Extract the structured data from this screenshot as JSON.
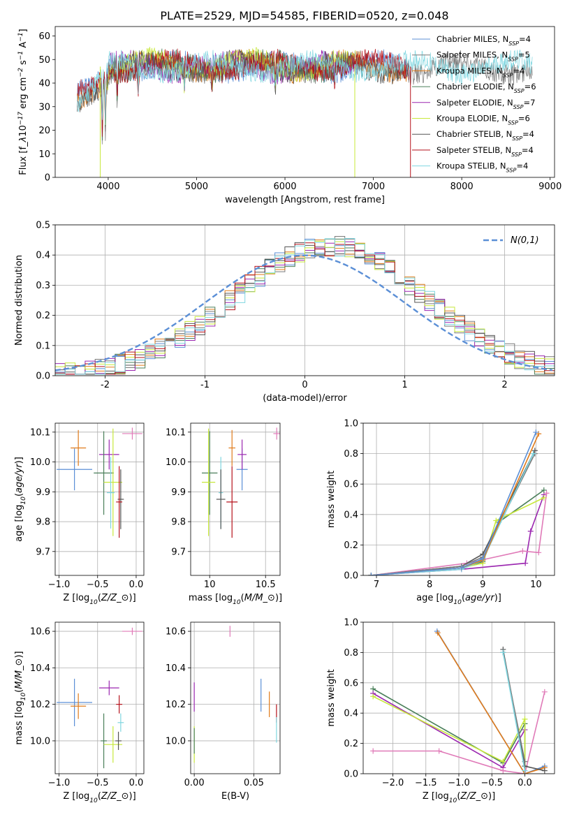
{
  "title": "PLATE=2529, MJD=54585, FIBERID=0520, z=0.048",
  "colors": {
    "Chabrier MILES": "#5b8fd6",
    "Salpeter MILES": "#7a7a7a",
    "Kroupa MILES": "#e07b1a",
    "Chabrier ELODIE": "#4a7f5a",
    "Salpeter ELODIE": "#9b27b0",
    "Kroupa ELODIE": "#c7e83a",
    "Chabrier STELIB": "#555555",
    "Salpeter STELIB": "#b5121b",
    "Kroupa STELIB": "#7fd6e0",
    "pink": "#e07ab8",
    "gauss": "#5b8fd6"
  },
  "chart_data": [
    {
      "id": "spectrum",
      "type": "line",
      "xlabel": "wavelength [Angstrom, rest frame]",
      "ylabel": "Flux [f$_\\lambda$10$^{-17}$ erg cm$^{-2}$ s$^{-1}$ A$^{-1}$]",
      "xlim": [
        3400,
        9050
      ],
      "ylim": [
        0,
        64
      ],
      "xticks": [
        4000,
        5000,
        6000,
        7000,
        8000,
        9000
      ],
      "yticks": [
        0,
        10,
        20,
        30,
        40,
        50,
        60
      ],
      "grid": false,
      "legend": "top-right",
      "series": [
        {
          "name": "Chabrier MILES, N$_{SSP}$=4",
          "color_key": "Chabrier MILES",
          "x_range": [
            3650,
            7400
          ],
          "base": 47,
          "phase": 0.0
        },
        {
          "name": "Salpeter MILES, N$_{SSP}$=5",
          "color_key": "Salpeter MILES",
          "x_range": [
            3650,
            8800
          ],
          "base": 46.5,
          "phase": 1.3
        },
        {
          "name": "Kroupa MILES, N$_{SSP}$=4",
          "color_key": "Kroupa MILES",
          "x_range": [
            3650,
            7400
          ],
          "base": 47.2,
          "phase": 2.1
        },
        {
          "name": "Chabrier ELODIE, N$_{SSP}$=6",
          "color_key": "Chabrier ELODIE",
          "x_range": [
            3900,
            6800
          ],
          "base": 47.5,
          "phase": 0.7
        },
        {
          "name": "Salpeter ELODIE, N$_{SSP}$=7",
          "color_key": "Salpeter ELODIE",
          "x_range": [
            3900,
            6800
          ],
          "base": 47.0,
          "phase": 3.3
        },
        {
          "name": "Kroupa ELODIE, N$_{SSP}$=6",
          "color_key": "Kroupa ELODIE",
          "x_range": [
            3900,
            6800
          ],
          "base": 48.0,
          "phase": 1.9
        },
        {
          "name": "Chabrier STELIB, N$_{SSP}$=4",
          "color_key": "Chabrier STELIB",
          "x_range": [
            3650,
            7400
          ],
          "base": 46.8,
          "phase": 2.7
        },
        {
          "name": "Salpeter STELIB, N$_{SSP}$=4",
          "color_key": "Salpeter STELIB",
          "x_range": [
            3650,
            7400
          ],
          "base": 47.3,
          "phase": 0.4
        },
        {
          "name": "Kroupa STELIB, N$_{SSP}$=4",
          "color_key": "Kroupa STELIB",
          "x_range": [
            3650,
            8800
          ],
          "base": 46.9,
          "phase": 4.1
        }
      ]
    },
    {
      "id": "residuals",
      "type": "line",
      "xlabel": "(data-model)/error",
      "ylabel": "Normed distribution",
      "xlim": [
        -2.5,
        2.5
      ],
      "ylim": [
        0,
        0.5
      ],
      "xticks": [
        -2,
        -1,
        0,
        1,
        2
      ],
      "yticks": [
        0.0,
        0.1,
        0.2,
        0.3,
        0.4,
        0.5
      ],
      "grid": true,
      "legend": "top-right",
      "gaussian": {
        "name": "$\\mathcal{N}(0,1)$",
        "mean": 0,
        "sigma": 1
      },
      "bins": {
        "start": -2.5,
        "width": 0.1,
        "count": 50
      },
      "histograms": [
        {
          "color_key": "Chabrier MILES",
          "seed": 1
        },
        {
          "color_key": "Salpeter MILES",
          "seed": 2
        },
        {
          "color_key": "Kroupa MILES",
          "seed": 3
        },
        {
          "color_key": "Chabrier ELODIE",
          "seed": 4
        },
        {
          "color_key": "Salpeter ELODIE",
          "seed": 5
        },
        {
          "color_key": "Kroupa ELODIE",
          "seed": 6
        },
        {
          "color_key": "Chabrier STELIB",
          "seed": 7
        },
        {
          "color_key": "Salpeter STELIB",
          "seed": 8
        },
        {
          "color_key": "Kroupa STELIB",
          "seed": 9
        }
      ]
    },
    {
      "id": "age_vs_Z",
      "type": "scatter",
      "xlabel": "Z [log$_{10}$($Z/Z_\\odot$)]",
      "ylabel": "age  [log$_{10}$($age/yr$)]",
      "xlim": [
        -1.05,
        0.1
      ],
      "ylim": [
        9.62,
        10.13
      ],
      "xticks": [
        -1.0,
        -0.5,
        0.0
      ],
      "xtick_labels": [
        "−1.0",
        "−0.5",
        "0.0"
      ],
      "yticks": [
        9.7,
        9.8,
        9.9,
        10.0,
        10.1
      ],
      "grid": true,
      "points": [
        {
          "color_key": "Chabrier MILES",
          "x": -0.8,
          "xerr": 0.23,
          "y": 9.975,
          "yerr": 0.07
        },
        {
          "color_key": "Kroupa MILES",
          "x": -0.75,
          "xerr": 0.1,
          "y": 10.047,
          "yerr": 0.06
        },
        {
          "color_key": "Salpeter ELODIE",
          "x": -0.35,
          "xerr": 0.13,
          "y": 10.025,
          "yerr": 0.05
        },
        {
          "color_key": "Chabrier ELODIE",
          "x": -0.42,
          "xerr": 0.13,
          "y": 9.963,
          "yerr": 0.14
        },
        {
          "color_key": "Kroupa ELODIE",
          "x": -0.3,
          "xerr": 0.12,
          "y": 9.932,
          "yerr": 0.18
        },
        {
          "color_key": "Kroupa STELIB",
          "x": -0.33,
          "xerr": 0.05,
          "y": 9.897,
          "yerr": 0.12
        },
        {
          "color_key": "Chabrier STELIB",
          "x": -0.2,
          "xerr": 0.04,
          "y": 9.875,
          "yerr": 0.1
        },
        {
          "color_key": "Salpeter STELIB",
          "x": -0.22,
          "xerr": 0.04,
          "y": 9.866,
          "yerr": 0.12
        },
        {
          "color_key": "pink",
          "x": -0.05,
          "xerr": 0.13,
          "y": 10.095,
          "yerr": 0.02
        }
      ]
    },
    {
      "id": "age_vs_mass",
      "type": "scatter",
      "xlabel": "mass [log$_{10}$($M/M_\\odot$)]",
      "ylabel": "",
      "xlim": [
        9.83,
        10.63
      ],
      "ylim": [
        9.62,
        10.13
      ],
      "xticks": [
        10.0,
        10.5
      ],
      "yticks": [
        9.7,
        9.8,
        9.9,
        10.0,
        10.1
      ],
      "grid": true,
      "points": [
        {
          "color_key": "Chabrier MILES",
          "x": 10.29,
          "xerr": 0.05,
          "y": 9.975,
          "yerr": 0.07
        },
        {
          "color_key": "Kroupa MILES",
          "x": 10.2,
          "xerr": 0.03,
          "y": 10.047,
          "yerr": 0.06
        },
        {
          "color_key": "Salpeter ELODIE",
          "x": 10.29,
          "xerr": 0.04,
          "y": 10.025,
          "yerr": 0.05
        },
        {
          "color_key": "Chabrier ELODIE",
          "x": 10.0,
          "xerr": 0.07,
          "y": 9.963,
          "yerr": 0.14
        },
        {
          "color_key": "Kroupa ELODIE",
          "x": 9.99,
          "xerr": 0.06,
          "y": 9.932,
          "yerr": 0.18
        },
        {
          "color_key": "Kroupa STELIB",
          "x": 10.1,
          "xerr": 0.02,
          "y": 9.897,
          "yerr": 0.12
        },
        {
          "color_key": "Chabrier STELIB",
          "x": 10.1,
          "xerr": 0.04,
          "y": 9.875,
          "yerr": 0.1
        },
        {
          "color_key": "Salpeter STELIB",
          "x": 10.2,
          "xerr": 0.05,
          "y": 9.866,
          "yerr": 0.12
        },
        {
          "color_key": "pink",
          "x": 10.6,
          "xerr": 0.03,
          "y": 10.095,
          "yerr": 0.02
        }
      ]
    },
    {
      "id": "mass_weight_vs_age",
      "type": "line",
      "xlabel": "age  [log$_{10}$($age/yr$)]",
      "ylabel": "mass weight",
      "xlim": [
        6.75,
        10.35
      ],
      "ylim": [
        0,
        1.0
      ],
      "xticks": [
        7,
        8,
        9,
        10
      ],
      "yticks": [
        0.0,
        0.2,
        0.4,
        0.6,
        0.8,
        1.0
      ],
      "grid": true,
      "series": [
        {
          "color_key": "Salpeter ELODIE",
          "x": [
            6.9,
            8.6,
            9.8,
            9.9,
            10.15
          ],
          "y": [
            0.0,
            0.04,
            0.08,
            0.29,
            0.53
          ]
        },
        {
          "color_key": "pink",
          "x": [
            6.9,
            8.7,
            9.75,
            10.05,
            10.2
          ],
          "y": [
            0.0,
            0.08,
            0.16,
            0.15,
            0.54
          ]
        },
        {
          "color_key": "Chabrier ELODIE",
          "x": [
            6.9,
            8.6,
            9.0,
            9.3,
            10.15
          ],
          "y": [
            0.0,
            0.05,
            0.09,
            0.35,
            0.56
          ]
        },
        {
          "color_key": "Kroupa ELODIE",
          "x": [
            6.9,
            8.6,
            9.0,
            9.25,
            10.15
          ],
          "y": [
            0.0,
            0.05,
            0.08,
            0.36,
            0.51
          ]
        },
        {
          "color_key": "Chabrier STELIB",
          "x": [
            6.9,
            8.6,
            9.0,
            9.98
          ],
          "y": [
            0.0,
            0.06,
            0.14,
            0.82
          ]
        },
        {
          "color_key": "Salpeter MILES",
          "x": [
            6.9,
            8.6,
            9.0,
            9.98
          ],
          "y": [
            0.0,
            0.06,
            0.12,
            0.8
          ]
        },
        {
          "color_key": "Kroupa STELIB",
          "x": [
            6.9,
            8.6,
            9.0,
            9.95
          ],
          "y": [
            0.0,
            0.04,
            0.1,
            0.8
          ]
        },
        {
          "color_key": "Kroupa MILES",
          "x": [
            6.9,
            8.6,
            9.0,
            10.05
          ],
          "y": [
            0.0,
            0.05,
            0.1,
            0.93
          ]
        },
        {
          "color_key": "Chabrier MILES",
          "x": [
            6.9,
            8.6,
            9.0,
            10.0
          ],
          "y": [
            0.0,
            0.05,
            0.11,
            0.94
          ]
        }
      ]
    },
    {
      "id": "mass_vs_Z",
      "type": "scatter",
      "xlabel": "Z [log$_{10}$($Z/Z_\\odot$)]",
      "ylabel": "mass [log$_{10}$($M/M_\\odot$)]",
      "xlim": [
        -1.05,
        0.1
      ],
      "ylim": [
        9.82,
        10.65
      ],
      "xticks": [
        -1.0,
        -0.5,
        0.0
      ],
      "xtick_labels": [
        "−1.0",
        "−0.5",
        "0.0"
      ],
      "yticks": [
        10.0,
        10.2,
        10.4,
        10.6
      ],
      "grid": true,
      "points": [
        {
          "color_key": "Chabrier MILES",
          "x": -0.8,
          "xerr": 0.23,
          "y": 10.21,
          "yerr": 0.13
        },
        {
          "color_key": "Kroupa MILES",
          "x": -0.75,
          "xerr": 0.1,
          "y": 10.19,
          "yerr": 0.07
        },
        {
          "color_key": "Salpeter ELODIE",
          "x": -0.35,
          "xerr": 0.13,
          "y": 10.29,
          "yerr": 0.04
        },
        {
          "color_key": "Salpeter STELIB",
          "x": -0.22,
          "xerr": 0.04,
          "y": 10.2,
          "yerr": 0.05
        },
        {
          "color_key": "Chabrier ELODIE",
          "x": -0.42,
          "xerr": 0.04,
          "y": 10.0,
          "yerr": 0.15
        },
        {
          "color_key": "Kroupa STELIB",
          "x": -0.2,
          "xerr": 0.04,
          "y": 10.1,
          "yerr": 0.05
        },
        {
          "color_key": "Kroupa ELODIE",
          "x": -0.3,
          "xerr": 0.12,
          "y": 9.98,
          "yerr": 0.1
        },
        {
          "color_key": "Chabrier STELIB",
          "x": -0.23,
          "xerr": 0.04,
          "y": 10.0,
          "yerr": 0.05
        },
        {
          "color_key": "pink",
          "x": -0.05,
          "xerr": 0.13,
          "y": 10.6,
          "yerr": 0.02
        }
      ]
    },
    {
      "id": "mass_vs_ebv",
      "type": "scatter",
      "xlabel": "E(B-V)",
      "ylabel": "",
      "xlim": [
        -0.003,
        0.072
      ],
      "ylim": [
        9.82,
        10.65
      ],
      "xticks": [
        0.0,
        0.05
      ],
      "xtick_labels": [
        "0.00",
        "0.05"
      ],
      "yticks": [
        10.0,
        10.2,
        10.4,
        10.6
      ],
      "grid": true,
      "points": [
        {
          "color_key": "Salpeter ELODIE",
          "x": 0.0,
          "y": 10.24,
          "yerr": 0.08
        },
        {
          "color_key": "Kroupa ELODIE",
          "x": 0.0,
          "y": 9.98,
          "yerr": 0.1
        },
        {
          "color_key": "Chabrier ELODIE",
          "x": 0.0,
          "y": 10.0,
          "yerr": 0.07
        },
        {
          "color_key": "pink",
          "x": 0.03,
          "y": 10.6,
          "yerr": 0.03
        },
        {
          "color_key": "Chabrier MILES",
          "x": 0.056,
          "y": 10.25,
          "yerr": 0.09
        },
        {
          "color_key": "Kroupa MILES",
          "x": 0.063,
          "y": 10.2,
          "yerr": 0.07
        },
        {
          "color_key": "Salpeter STELIB",
          "x": 0.069,
          "y": 10.15,
          "yerr": 0.05
        },
        {
          "color_key": "Kroupa STELIB",
          "x": 0.069,
          "y": 10.06,
          "yerr": 0.07
        }
      ]
    },
    {
      "id": "mass_weight_vs_Z",
      "type": "line",
      "xlabel": "Z [log$_{10}$($Z/Z_\\odot$)]",
      "ylabel": "mass weight",
      "xlim": [
        -2.45,
        0.45
      ],
      "ylim": [
        0,
        1.0
      ],
      "xticks": [
        -2.0,
        -1.5,
        -1.0,
        -0.5,
        0.0
      ],
      "xtick_labels": [
        "−2.0",
        "−1.5",
        "−1.0",
        "−0.5",
        "0.0"
      ],
      "yticks": [
        0.0,
        0.2,
        0.4,
        0.6,
        0.8,
        1.0
      ],
      "grid": true,
      "series": [
        {
          "color_key": "Chabrier ELODIE",
          "x": [
            -2.3,
            -0.33,
            0.0,
            0.0
          ],
          "y": [
            0.56,
            0.07,
            0.33,
            0.0
          ]
        },
        {
          "color_key": "Salpeter ELODIE",
          "x": [
            -2.3,
            -0.33,
            0.0
          ],
          "y": [
            0.53,
            0.04,
            0.29
          ]
        },
        {
          "color_key": "Kroupa ELODIE",
          "x": [
            -2.3,
            -0.33,
            0.0,
            0.0
          ],
          "y": [
            0.51,
            0.08,
            0.36,
            0.0
          ]
        },
        {
          "color_key": "pink",
          "x": [
            -2.3,
            -1.3,
            -0.33,
            0.0,
            0.3
          ],
          "y": [
            0.15,
            0.15,
            0.02,
            0.0,
            0.54
          ]
        },
        {
          "color_key": "Chabrier MILES",
          "x": [
            -1.33,
            0.0,
            0.3
          ],
          "y": [
            0.94,
            0.0,
            0.05
          ]
        },
        {
          "color_key": "Kroupa MILES",
          "x": [
            -1.32,
            0.0,
            0.3
          ],
          "y": [
            0.93,
            0.0,
            0.04
          ]
        },
        {
          "color_key": "Chabrier STELIB",
          "x": [
            -0.33,
            0.0,
            0.3
          ],
          "y": [
            0.82,
            0.05,
            0.02
          ]
        },
        {
          "color_key": "Salpeter MILES",
          "x": [
            -0.33,
            0.0
          ],
          "y": [
            0.8,
            0.08
          ]
        },
        {
          "color_key": "Kroupa STELIB",
          "x": [
            -0.33,
            0.0
          ],
          "y": [
            0.8,
            0.02
          ]
        }
      ]
    }
  ]
}
